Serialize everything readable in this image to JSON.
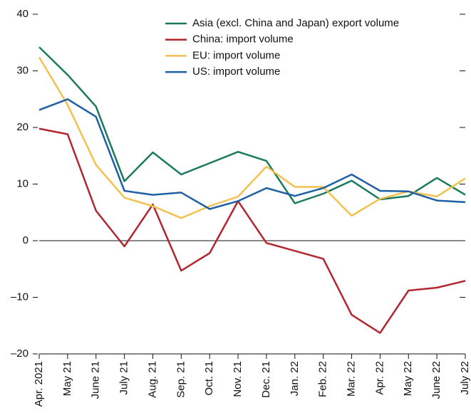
{
  "chart_data": {
    "type": "line",
    "categories": [
      "Apr. 2021",
      "May 21",
      "June 21",
      "July 21",
      "Aug. 21",
      "Sep. 21",
      "Oct. 21",
      "Nov. 21",
      "Dec. 21",
      "Jan. 22",
      "Feb. 22",
      "Mar. 22",
      "Apr. 22",
      "May 22",
      "June 22",
      "July 22"
    ],
    "series": [
      {
        "name": "Asia (excl. China and Japan) export volume",
        "color": "#1a7a5e",
        "values": [
          34.2,
          29.3,
          23.7,
          10.5,
          15.6,
          11.7,
          13.7,
          15.7,
          14.1,
          6.6,
          8.3,
          10.6,
          7.3,
          7.9,
          11.1,
          8.1
        ]
      },
      {
        "name": "China: import volume",
        "color": "#b0282e",
        "values": [
          19.8,
          18.8,
          5.3,
          -1.0,
          6.4,
          -5.3,
          -2.2,
          7.0,
          -0.4,
          -1.8,
          -3.2,
          -13.1,
          -16.3,
          -8.8,
          -8.3,
          -7.1
        ]
      },
      {
        "name": "EU: import volume",
        "color": "#f2c14e",
        "values": [
          32.4,
          24.0,
          13.4,
          7.6,
          6.1,
          4.0,
          6.1,
          7.8,
          13.1,
          9.5,
          9.5,
          4.4,
          7.4,
          8.7,
          7.8,
          11.0
        ]
      },
      {
        "name": "US: import volume",
        "color": "#1f5fa3",
        "values": [
          23.1,
          25.0,
          21.9,
          8.8,
          8.1,
          8.5,
          5.6,
          7.0,
          9.3,
          7.9,
          9.3,
          11.7,
          8.8,
          8.7,
          7.1,
          6.8
        ]
      }
    ],
    "ylim": [
      -20,
      40
    ],
    "yticks": [
      {
        "value": -20,
        "label": "–20"
      },
      {
        "value": -10,
        "label": "–10"
      },
      0,
      10,
      20,
      30,
      40
    ],
    "grid": false
  }
}
